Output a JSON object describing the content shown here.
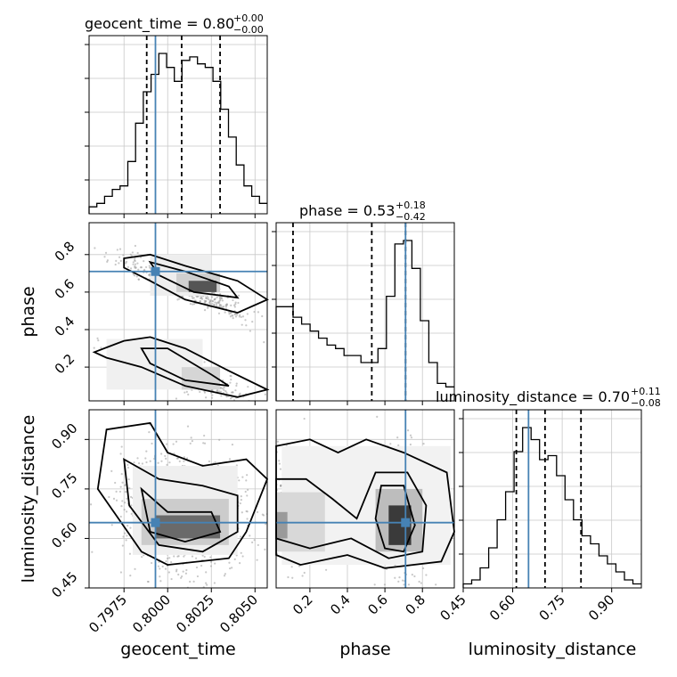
{
  "chart_data": {
    "type": "corner",
    "parameters": [
      "geocent_time",
      "phase",
      "luminosity_distance"
    ],
    "axis_labels": [
      "geocent_time",
      "phase",
      "luminosity_distance"
    ],
    "ranges": {
      "geocent_time": [
        0.7955,
        0.8057
      ],
      "phase": [
        0.02,
        0.97
      ],
      "luminosity_distance": [
        0.45,
        0.99
      ]
    },
    "ticks": {
      "geocent_time": [
        "0.7975",
        "0.8000",
        "0.8025",
        "0.8050"
      ],
      "phase": [
        "0.2",
        "0.4",
        "0.6",
        "0.8"
      ],
      "luminosity_distance": [
        "0.45",
        "0.60",
        "0.75",
        "0.90"
      ]
    },
    "titles": {
      "geocent_time": {
        "name": "geocent_time",
        "median": "0.80",
        "plus": "+0.00",
        "minus": "−0.00"
      },
      "phase": {
        "name": "phase",
        "median": "0.53",
        "plus": "+0.18",
        "minus": "−0.42"
      },
      "luminosity_distance": {
        "name": "luminosity_distance",
        "median": "0.70",
        "plus": "+0.11",
        "minus": "−0.08"
      }
    },
    "truths": {
      "geocent_time": 0.7993,
      "phase": 0.71,
      "luminosity_distance": 0.648
    },
    "quantiles": {
      "geocent_time": [
        0.7988,
        0.8008,
        0.803
      ],
      "phase": [
        0.11,
        0.53,
        0.71
      ],
      "luminosity_distance": [
        0.611,
        0.698,
        0.807
      ]
    },
    "histograms": {
      "geocent_time": [
        2,
        3,
        5,
        7,
        8,
        15,
        26,
        35,
        40,
        46,
        42,
        38,
        44,
        45,
        43,
        42,
        38,
        30,
        22,
        14,
        8,
        5,
        3
      ],
      "phase": [
        27,
        27,
        24,
        22,
        20,
        18,
        16,
        15,
        13,
        13,
        11,
        11,
        15,
        30,
        45,
        46,
        38,
        23,
        11,
        5,
        4
      ],
      "luminosity_distance": [
        1,
        2,
        5,
        10,
        17,
        24,
        34,
        40,
        37,
        32,
        33,
        28,
        22,
        17,
        13,
        11,
        8,
        6,
        4,
        2,
        1
      ]
    },
    "grid": true
  }
}
